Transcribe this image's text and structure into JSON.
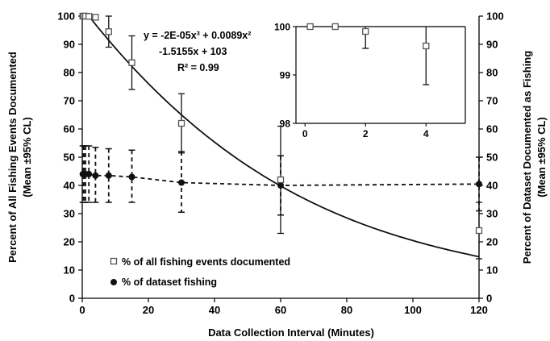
{
  "chart_data": [
    {
      "type": "scatter",
      "xlabel": "Data Collection Interval (Minutes)",
      "ylabel_left": "Percent of All Fishing Events Documented",
      "ylabel_left_sub": "(Mean ±95% CL)",
      "ylabel_right": "Percent of Dataset Documented as Fishing",
      "ylabel_right_sub": "(Mean ±95% CL)",
      "xlim": [
        0,
        120
      ],
      "ylim": [
        0,
        100
      ],
      "x_ticks": [
        "0",
        "20",
        "40",
        "60",
        "80",
        "100",
        "120"
      ],
      "y_ticks": [
        "0",
        "10",
        "20",
        "30",
        "40",
        "50",
        "60",
        "70",
        "80",
        "90",
        "100"
      ],
      "grid": false,
      "legend_position": "bottom-left",
      "annotation": {
        "equation_line1": "y = -2E-05x³ + 0.0089x²",
        "equation_line2": "-1.5155x + 103",
        "r_squared": "R² = 0.99"
      },
      "trendline": {
        "type": "polynomial",
        "coefficients": [
          -2e-05,
          0.0089,
          -1.5155,
          103
        ],
        "style": "solid"
      },
      "series": [
        {
          "name": "% of all fishing events documented",
          "marker": "open-square",
          "points": [
            {
              "x": 0.17,
              "y": 100,
              "low": 100,
              "high": 100
            },
            {
              "x": 0.5,
              "y": 100,
              "low": 100,
              "high": 100
            },
            {
              "x": 1,
              "y": 100,
              "low": 100,
              "high": 100
            },
            {
              "x": 2,
              "y": 99.9,
              "low": 99.6,
              "high": 100
            },
            {
              "x": 4,
              "y": 99.6,
              "low": 98.8,
              "high": 100
            },
            {
              "x": 8,
              "y": 94.5,
              "low": 89,
              "high": 100
            },
            {
              "x": 15,
              "y": 83.5,
              "low": 74,
              "high": 93
            },
            {
              "x": 30,
              "y": 62,
              "low": 51.5,
              "high": 72.5
            },
            {
              "x": 60,
              "y": 42,
              "low": 23,
              "high": 61
            },
            {
              "x": 120,
              "y": 24,
              "low": 14,
              "high": 34
            }
          ]
        },
        {
          "name": "% of dataset fishing",
          "marker": "filled-circle",
          "line_style": "dashed",
          "points": [
            {
              "x": 0.17,
              "y": 44,
              "low": 34,
              "high": 54
            },
            {
              "x": 0.5,
              "y": 44,
              "low": 34,
              "high": 54
            },
            {
              "x": 1,
              "y": 44,
              "low": 34,
              "high": 54
            },
            {
              "x": 2,
              "y": 44,
              "low": 34,
              "high": 54
            },
            {
              "x": 4,
              "y": 43.5,
              "low": 34,
              "high": 53.5
            },
            {
              "x": 8,
              "y": 43.5,
              "low": 34,
              "high": 53
            },
            {
              "x": 15,
              "y": 43,
              "low": 34,
              "high": 52.5
            },
            {
              "x": 30,
              "y": 41,
              "low": 30.5,
              "high": 52
            },
            {
              "x": 60,
              "y": 40,
              "low": 29.5,
              "high": 50.5
            },
            {
              "x": 120,
              "y": 40.5,
              "low": 31,
              "high": 50
            }
          ]
        }
      ]
    },
    {
      "type": "scatter",
      "inset": true,
      "xlim": [
        -0.3,
        5.3
      ],
      "ylim": [
        98,
        100
      ],
      "x_ticks": [
        "0",
        "2",
        "4"
      ],
      "y_ticks": [
        "98",
        "99",
        "100"
      ],
      "right_ticks": [
        "40",
        "50",
        "60",
        "70",
        "80",
        "90",
        "100"
      ],
      "series": [
        {
          "name": "% of all fishing events documented",
          "marker": "open-square",
          "points": [
            {
              "x": 0.17,
              "y": 100,
              "low": 100,
              "high": 100
            },
            {
              "x": 1,
              "y": 100,
              "low": 100,
              "high": 100
            },
            {
              "x": 2,
              "y": 99.9,
              "low": 99.55,
              "high": 100
            },
            {
              "x": 4,
              "y": 99.6,
              "low": 98.8,
              "high": 100
            }
          ]
        }
      ]
    }
  ]
}
